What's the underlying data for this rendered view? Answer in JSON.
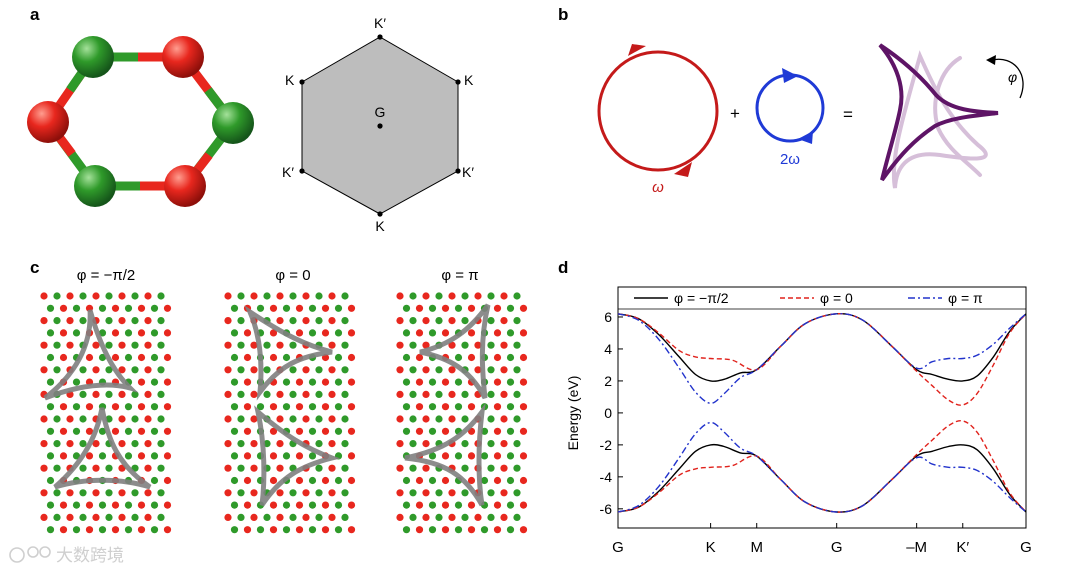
{
  "panels": {
    "a": {
      "letter": "a",
      "hexagon_labels": [
        "K′",
        "K",
        "K",
        "G",
        "K′",
        "K′",
        "K"
      ],
      "colors": {
        "atom_red": "#e8271e",
        "atom_green": "#2f9a2a",
        "hexagon_fill": "#bdbdbd"
      }
    },
    "b": {
      "letter": "b",
      "omega_label": "ω",
      "two_omega_label": "2ω",
      "phi_label": "φ",
      "plus": "+",
      "equals": "=",
      "colors": {
        "omega": "#c41a1a",
        "two_omega": "#1f3ad6",
        "result": "#5e1466",
        "result_faint": "#d6bfd9"
      }
    },
    "c": {
      "letter": "c",
      "titles": [
        "φ = −π/2",
        "φ = 0",
        "φ = π"
      ],
      "colors": {
        "dot_red": "#e8271e",
        "dot_green": "#2f9a2a",
        "trajectory": "#808080"
      }
    },
    "d": {
      "letter": "d",
      "chart_data": {
        "type": "line",
        "ylabel": "Energy (eV)",
        "xlabel": "",
        "ylim": [
          -7.2,
          7.5
        ],
        "yticks": [
          6,
          4,
          2,
          0,
          -2,
          -4,
          -6
        ],
        "x_ticks": [
          {
            "label": "G",
            "x": 0
          },
          {
            "label": "K",
            "x": 0.227
          },
          {
            "label": "M",
            "x": 0.34
          },
          {
            "label": "G",
            "x": 0.536
          },
          {
            "label": "–M",
            "x": 0.732
          },
          {
            "label": "K′",
            "x": 0.845
          },
          {
            "label": "G",
            "x": 1
          }
        ],
        "legend_position": "top",
        "series": [
          {
            "name": "φ = −π/2",
            "color": "#000000",
            "style": "solid",
            "upper": [
              [
                0,
                6.2
              ],
              [
                0.05,
                5.9
              ],
              [
                0.1,
                4.9
              ],
              [
                0.15,
                3.5
              ],
              [
                0.19,
                2.4
              ],
              [
                0.227,
                2.0
              ],
              [
                0.26,
                2.1
              ],
              [
                0.3,
                2.5
              ],
              [
                0.34,
                2.7
              ],
              [
                0.4,
                4.2
              ],
              [
                0.46,
                5.6
              ],
              [
                0.536,
                6.2
              ],
              [
                0.6,
                5.8
              ],
              [
                0.67,
                4.2
              ],
              [
                0.732,
                2.7
              ],
              [
                0.77,
                2.4
              ],
              [
                0.81,
                2.1
              ],
              [
                0.845,
                2.0
              ],
              [
                0.88,
                2.3
              ],
              [
                0.92,
                3.5
              ],
              [
                0.96,
                5.1
              ],
              [
                1,
                6.2
              ]
            ],
            "lower": [
              [
                0,
                -6.2
              ],
              [
                0.05,
                -5.9
              ],
              [
                0.1,
                -4.9
              ],
              [
                0.15,
                -3.5
              ],
              [
                0.19,
                -2.4
              ],
              [
                0.227,
                -2.0
              ],
              [
                0.26,
                -2.1
              ],
              [
                0.3,
                -2.5
              ],
              [
                0.34,
                -2.7
              ],
              [
                0.4,
                -4.2
              ],
              [
                0.46,
                -5.6
              ],
              [
                0.536,
                -6.2
              ],
              [
                0.6,
                -5.8
              ],
              [
                0.67,
                -4.2
              ],
              [
                0.732,
                -2.7
              ],
              [
                0.77,
                -2.4
              ],
              [
                0.81,
                -2.1
              ],
              [
                0.845,
                -2.0
              ],
              [
                0.88,
                -2.3
              ],
              [
                0.92,
                -3.5
              ],
              [
                0.96,
                -5.1
              ],
              [
                1,
                -6.2
              ]
            ]
          },
          {
            "name": "φ = 0",
            "color": "#e0221c",
            "style": "dashed",
            "upper": [
              [
                0,
                6.2
              ],
              [
                0.05,
                5.9
              ],
              [
                0.1,
                5.0
              ],
              [
                0.15,
                3.9
              ],
              [
                0.19,
                3.5
              ],
              [
                0.227,
                3.4
              ],
              [
                0.28,
                3.3
              ],
              [
                0.34,
                2.7
              ],
              [
                0.4,
                4.2
              ],
              [
                0.46,
                5.6
              ],
              [
                0.536,
                6.2
              ],
              [
                0.6,
                5.8
              ],
              [
                0.67,
                4.2
              ],
              [
                0.732,
                2.6
              ],
              [
                0.77,
                1.7
              ],
              [
                0.81,
                0.8
              ],
              [
                0.845,
                0.5
              ],
              [
                0.88,
                1.2
              ],
              [
                0.92,
                3.0
              ],
              [
                0.96,
                5.0
              ],
              [
                1,
                6.2
              ]
            ],
            "lower": [
              [
                0,
                -6.2
              ],
              [
                0.05,
                -5.9
              ],
              [
                0.1,
                -5.0
              ],
              [
                0.15,
                -3.9
              ],
              [
                0.19,
                -3.5
              ],
              [
                0.227,
                -3.4
              ],
              [
                0.28,
                -3.3
              ],
              [
                0.34,
                -2.7
              ],
              [
                0.4,
                -4.2
              ],
              [
                0.46,
                -5.6
              ],
              [
                0.536,
                -6.2
              ],
              [
                0.6,
                -5.8
              ],
              [
                0.67,
                -4.2
              ],
              [
                0.732,
                -2.6
              ],
              [
                0.77,
                -1.7
              ],
              [
                0.81,
                -0.8
              ],
              [
                0.845,
                -0.5
              ],
              [
                0.88,
                -1.2
              ],
              [
                0.92,
                -3.0
              ],
              [
                0.96,
                -5.0
              ],
              [
                1,
                -6.2
              ]
            ]
          },
          {
            "name": "φ = π",
            "color": "#2233cc",
            "style": "dashdot",
            "upper": [
              [
                0,
                6.2
              ],
              [
                0.05,
                5.8
              ],
              [
                0.1,
                4.6
              ],
              [
                0.15,
                2.8
              ],
              [
                0.19,
                1.3
              ],
              [
                0.227,
                0.6
              ],
              [
                0.26,
                1.2
              ],
              [
                0.3,
                2.2
              ],
              [
                0.34,
                2.7
              ],
              [
                0.4,
                4.2
              ],
              [
                0.46,
                5.6
              ],
              [
                0.536,
                6.2
              ],
              [
                0.6,
                5.8
              ],
              [
                0.67,
                4.2
              ],
              [
                0.732,
                2.8
              ],
              [
                0.77,
                3.2
              ],
              [
                0.81,
                3.4
              ],
              [
                0.845,
                3.4
              ],
              [
                0.88,
                3.6
              ],
              [
                0.92,
                4.3
              ],
              [
                0.96,
                5.3
              ],
              [
                1,
                6.2
              ]
            ],
            "lower": [
              [
                0,
                -6.2
              ],
              [
                0.05,
                -5.8
              ],
              [
                0.1,
                -4.6
              ],
              [
                0.15,
                -2.8
              ],
              [
                0.19,
                -1.3
              ],
              [
                0.227,
                -0.6
              ],
              [
                0.26,
                -1.2
              ],
              [
                0.3,
                -2.2
              ],
              [
                0.34,
                -2.7
              ],
              [
                0.4,
                -4.2
              ],
              [
                0.46,
                -5.6
              ],
              [
                0.536,
                -6.2
              ],
              [
                0.6,
                -5.8
              ],
              [
                0.67,
                -4.2
              ],
              [
                0.732,
                -2.8
              ],
              [
                0.77,
                -3.2
              ],
              [
                0.81,
                -3.4
              ],
              [
                0.845,
                -3.4
              ],
              [
                0.88,
                -3.6
              ],
              [
                0.92,
                -4.3
              ],
              [
                0.96,
                -5.3
              ],
              [
                1,
                -6.2
              ]
            ]
          }
        ]
      }
    }
  },
  "watermark": "大数跨境"
}
